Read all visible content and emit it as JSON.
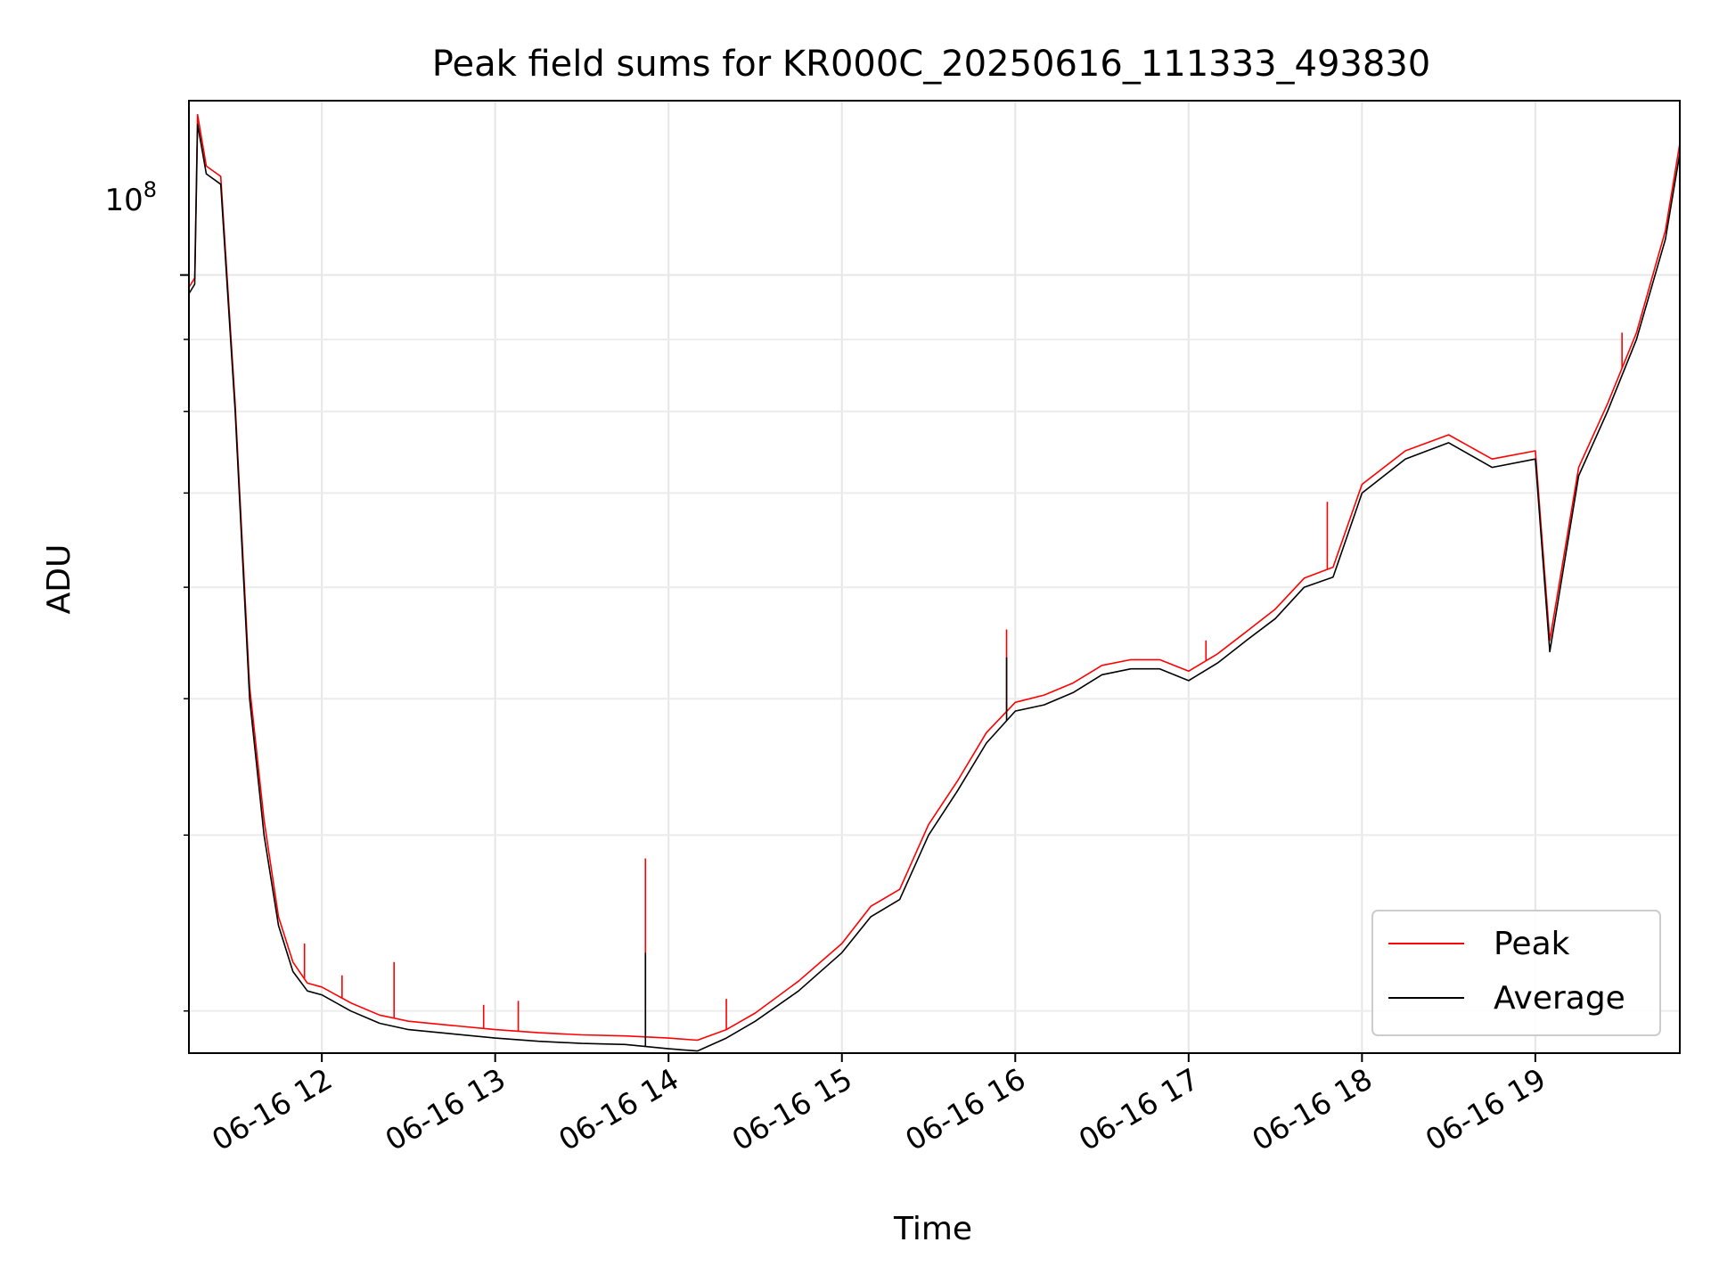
{
  "chart_data": {
    "type": "line",
    "title": "Peak field sums for KR000C_20250616_111333_493830",
    "xlabel": "Time",
    "ylabel": "ADU",
    "yscale": "log",
    "grid": true,
    "legend_position": "lower right",
    "xlim": [
      "2025-06-16 11:14",
      "2025-06-16 19:50"
    ],
    "ylim": [
      28000000,
      133000000
    ],
    "x_ticks": [
      {
        "value": "2025-06-16 12:00",
        "label": "06-16 12"
      },
      {
        "value": "2025-06-16 13:00",
        "label": "06-16 13"
      },
      {
        "value": "2025-06-16 14:00",
        "label": "06-16 14"
      },
      {
        "value": "2025-06-16 15:00",
        "label": "06-16 15"
      },
      {
        "value": "2025-06-16 16:00",
        "label": "06-16 16"
      },
      {
        "value": "2025-06-16 17:00",
        "label": "06-16 17"
      },
      {
        "value": "2025-06-16 18:00",
        "label": "06-16 18"
      },
      {
        "value": "2025-06-16 19:00",
        "label": "06-16 19"
      }
    ],
    "y_major_ticks": [
      {
        "value": 100000000,
        "label_base": "10",
        "label_exp": "8"
      }
    ],
    "y_minor_ticks": [
      30000000,
      40000000,
      50000000,
      60000000,
      70000000,
      80000000,
      90000000
    ],
    "series": [
      {
        "name": "Average",
        "color": "#000000",
        "x": [
          "2025-06-16 11:14",
          "2025-06-16 11:16",
          "2025-06-16 11:17",
          "2025-06-16 11:20",
          "2025-06-16 11:25",
          "2025-06-16 11:30",
          "2025-06-16 11:35",
          "2025-06-16 11:40",
          "2025-06-16 11:45",
          "2025-06-16 11:50",
          "2025-06-16 11:55",
          "2025-06-16 12:00",
          "2025-06-16 12:10",
          "2025-06-16 12:20",
          "2025-06-16 12:30",
          "2025-06-16 12:45",
          "2025-06-16 13:00",
          "2025-06-16 13:15",
          "2025-06-16 13:30",
          "2025-06-16 13:45",
          "2025-06-16 14:00",
          "2025-06-16 14:10",
          "2025-06-16 14:20",
          "2025-06-16 14:30",
          "2025-06-16 14:45",
          "2025-06-16 15:00",
          "2025-06-16 15:10",
          "2025-06-16 15:20",
          "2025-06-16 15:30",
          "2025-06-16 15:40",
          "2025-06-16 15:50",
          "2025-06-16 16:00",
          "2025-06-16 16:10",
          "2025-06-16 16:20",
          "2025-06-16 16:30",
          "2025-06-16 16:40",
          "2025-06-16 16:50",
          "2025-06-16 17:00",
          "2025-06-16 17:10",
          "2025-06-16 17:20",
          "2025-06-16 17:30",
          "2025-06-16 17:40",
          "2025-06-16 17:50",
          "2025-06-16 18:00",
          "2025-06-16 18:15",
          "2025-06-16 18:30",
          "2025-06-16 18:45",
          "2025-06-16 19:00",
          "2025-06-16 19:05",
          "2025-06-16 19:15",
          "2025-06-16 19:25",
          "2025-06-16 19:35",
          "2025-06-16 19:45",
          "2025-06-16 19:50"
        ],
        "y": [
          97000000,
          98500000,
          128000000,
          118000000,
          116000000,
          80000000,
          50000000,
          40000000,
          34500000,
          32000000,
          31000000,
          30800000,
          30000000,
          29400000,
          29100000,
          28900000,
          28700000,
          28550000,
          28450000,
          28400000,
          28200000,
          28100000,
          28700000,
          29500000,
          31000000,
          33000000,
          35000000,
          36000000,
          40000000,
          43000000,
          46500000,
          49000000,
          49500000,
          50500000,
          52000000,
          52500000,
          52500000,
          51500000,
          53000000,
          55000000,
          57000000,
          60000000,
          61000000,
          70000000,
          74000000,
          76000000,
          73000000,
          74000000,
          54000000,
          72000000,
          80000000,
          90000000,
          106000000,
          122000000
        ]
      },
      {
        "name": "Peak",
        "color": "#ff0000",
        "x": [
          "2025-06-16 11:14",
          "2025-06-16 11:16",
          "2025-06-16 11:17",
          "2025-06-16 11:20",
          "2025-06-16 11:25",
          "2025-06-16 11:30",
          "2025-06-16 11:35",
          "2025-06-16 11:40",
          "2025-06-16 11:45",
          "2025-06-16 11:50",
          "2025-06-16 11:55",
          "2025-06-16 12:00",
          "2025-06-16 12:10",
          "2025-06-16 12:20",
          "2025-06-16 12:30",
          "2025-06-16 12:45",
          "2025-06-16 13:00",
          "2025-06-16 13:15",
          "2025-06-16 13:30",
          "2025-06-16 13:45",
          "2025-06-16 14:00",
          "2025-06-16 14:10",
          "2025-06-16 14:20",
          "2025-06-16 14:30",
          "2025-06-16 14:45",
          "2025-06-16 15:00",
          "2025-06-16 15:10",
          "2025-06-16 15:20",
          "2025-06-16 15:30",
          "2025-06-16 15:40",
          "2025-06-16 15:50",
          "2025-06-16 16:00",
          "2025-06-16 16:10",
          "2025-06-16 16:20",
          "2025-06-16 16:30",
          "2025-06-16 16:40",
          "2025-06-16 16:50",
          "2025-06-16 17:00",
          "2025-06-16 17:10",
          "2025-06-16 17:20",
          "2025-06-16 17:30",
          "2025-06-16 17:40",
          "2025-06-16 17:50",
          "2025-06-16 18:00",
          "2025-06-16 18:15",
          "2025-06-16 18:30",
          "2025-06-16 18:45",
          "2025-06-16 19:00",
          "2025-06-16 19:05",
          "2025-06-16 19:15",
          "2025-06-16 19:25",
          "2025-06-16 19:35",
          "2025-06-16 19:45",
          "2025-06-16 19:50"
        ],
        "y": [
          98000000,
          99500000,
          130000000,
          119500000,
          117500000,
          81000000,
          51000000,
          41000000,
          35000000,
          32500000,
          31400000,
          31200000,
          30400000,
          29800000,
          29500000,
          29300000,
          29100000,
          28950000,
          28850000,
          28800000,
          28700000,
          28600000,
          29100000,
          29900000,
          31500000,
          33500000,
          35600000,
          36600000,
          40700000,
          43700000,
          47300000,
          49700000,
          50300000,
          51300000,
          52800000,
          53300000,
          53300000,
          52300000,
          53800000,
          55800000,
          57900000,
          60900000,
          62000000,
          71000000,
          75000000,
          77000000,
          74000000,
          75000000,
          55000000,
          73000000,
          81000000,
          91000000,
          107500000,
          124000000
        ]
      }
    ],
    "spikes": [
      {
        "series": "Peak",
        "x": "2025-06-16 11:54",
        "y": 33500000
      },
      {
        "series": "Peak",
        "x": "2025-06-16 12:07",
        "y": 31800000
      },
      {
        "series": "Peak",
        "x": "2025-06-16 12:25",
        "y": 32500000
      },
      {
        "series": "Peak",
        "x": "2025-06-16 12:56",
        "y": 30300000
      },
      {
        "series": "Peak",
        "x": "2025-06-16 13:08",
        "y": 30500000
      },
      {
        "series": "Peak",
        "x": "2025-06-16 13:52",
        "y": 38500000
      },
      {
        "series": "Average",
        "x": "2025-06-16 13:52",
        "y": 33000000
      },
      {
        "series": "Peak",
        "x": "2025-06-16 14:20",
        "y": 30600000
      },
      {
        "series": "Peak",
        "x": "2025-06-16 15:57",
        "y": 56000000
      },
      {
        "series": "Average",
        "x": "2025-06-16 15:57",
        "y": 53500000
      },
      {
        "series": "Peak",
        "x": "2025-06-16 17:06",
        "y": 55000000
      },
      {
        "series": "Peak",
        "x": "2025-06-16 17:48",
        "y": 69000000
      },
      {
        "series": "Peak",
        "x": "2025-06-16 19:30",
        "y": 91000000
      }
    ]
  }
}
